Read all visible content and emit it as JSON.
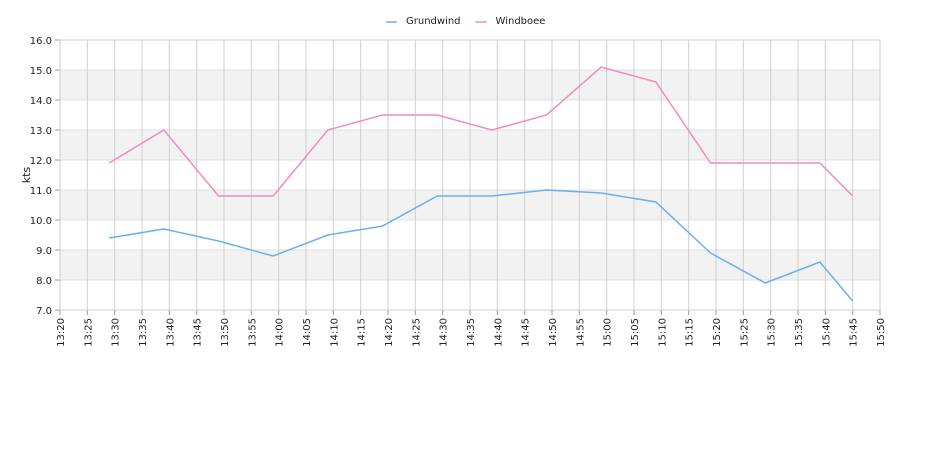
{
  "chart_data": {
    "type": "line",
    "y_label": "kts",
    "x": [
      "13:29",
      "13:39",
      "13:49",
      "13:59",
      "14:09",
      "14:19",
      "14:29",
      "14:39",
      "14:49",
      "14:59",
      "15:09",
      "15:19",
      "15:29",
      "15:39",
      "15:45"
    ],
    "series": [
      {
        "name": "Grundwind",
        "color": "#6aaff0",
        "values": [
          9.4,
          9.7,
          9.3,
          8.8,
          9.5,
          9.8,
          10.8,
          10.8,
          11.0,
          10.9,
          10.6,
          8.9,
          7.9,
          8.6,
          7.3
        ]
      },
      {
        "name": "Windboee",
        "color": "#f08cbf",
        "values": [
          11.9,
          13.0,
          10.8,
          10.8,
          13.0,
          13.5,
          13.5,
          13.0,
          13.5,
          15.1,
          14.6,
          11.9,
          11.9,
          11.9,
          10.8
        ]
      }
    ],
    "xlim": [
      "13:20",
      "15:50"
    ],
    "xticks": [
      "13:20",
      "13:25",
      "13:30",
      "13:35",
      "13:40",
      "13:45",
      "13:50",
      "13:55",
      "14:00",
      "14:05",
      "14:10",
      "14:15",
      "14:20",
      "14:25",
      "14:30",
      "14:35",
      "14:40",
      "14:45",
      "14:50",
      "14:55",
      "15:00",
      "15:05",
      "15:10",
      "15:15",
      "15:20",
      "15:25",
      "15:30",
      "15:35",
      "15:40",
      "15:45",
      "15:50"
    ],
    "ylim": [
      7,
      16
    ],
    "yticks": [
      {
        "value": 7,
        "label": "7.0"
      },
      {
        "value": 8,
        "label": "8.0"
      },
      {
        "value": 9,
        "label": "9.0"
      },
      {
        "value": 10,
        "label": "10.0"
      },
      {
        "value": 11,
        "label": "11.0"
      },
      {
        "value": 12,
        "label": "12.0"
      },
      {
        "value": 13,
        "label": "13.0"
      },
      {
        "value": 14,
        "label": "14.0"
      },
      {
        "value": 15,
        "label": "15.0"
      },
      {
        "value": 16,
        "label": "16.0"
      }
    ],
    "grid": true,
    "legend": "top"
  }
}
